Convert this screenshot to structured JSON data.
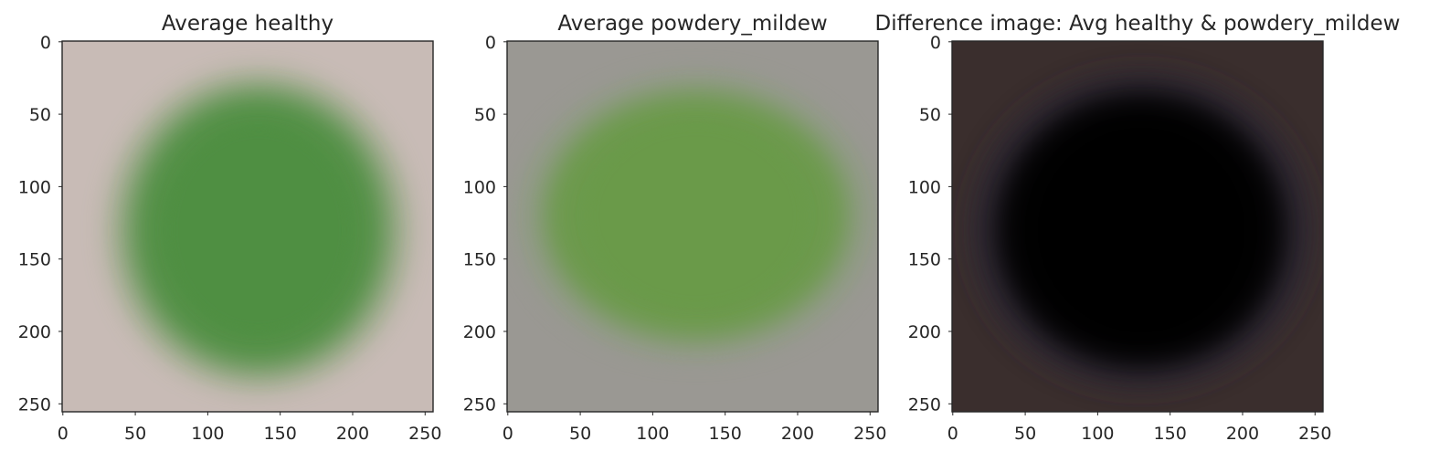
{
  "chart_data": [
    {
      "type": "heatmap",
      "title": "Average healthy",
      "xlabel": "",
      "ylabel": "",
      "xticks": [
        0,
        50,
        100,
        150,
        200,
        250
      ],
      "yticks": [
        0,
        50,
        100,
        150,
        200,
        250
      ],
      "xlim": [
        -0.5,
        255.5
      ],
      "ylim": [
        255.5,
        -0.5
      ],
      "grid": false,
      "image": {
        "background_color": "#c8bbb6",
        "leaf_color": "#4f8f43",
        "halo_color": "#8fa57e",
        "leaf_center": [
          135,
          130
        ],
        "leaf_radius": [
          88,
          95
        ],
        "midrib": true
      }
    },
    {
      "type": "heatmap",
      "title": "Average powdery_mildew",
      "xlabel": "",
      "ylabel": "",
      "xticks": [
        0,
        50,
        100,
        150,
        200,
        250
      ],
      "yticks": [
        0,
        50,
        100,
        150,
        200,
        250
      ],
      "xlim": [
        -0.5,
        255.5
      ],
      "ylim": [
        255.5,
        -0.5
      ],
      "grid": false,
      "image": {
        "background_color": "#9a9893",
        "leaf_color": "#6a9a4a",
        "halo_color": "#8e9c82",
        "leaf_center": [
          130,
          120
        ],
        "leaf_radius": [
          105,
          85
        ],
        "midrib": false
      }
    },
    {
      "type": "heatmap",
      "title": "Difference image: Avg healthy & powdery_mildew",
      "xlabel": "",
      "ylabel": "",
      "xticks": [
        0,
        50,
        100,
        150,
        200,
        250
      ],
      "yticks": [
        0,
        50,
        100,
        150,
        200,
        250
      ],
      "xlim": [
        -0.5,
        255.5
      ],
      "ylim": [
        255.5,
        -0.5
      ],
      "grid": false,
      "image": {
        "background_color": "#3a2e2d",
        "leaf_color": "#050405",
        "halo_color": "#2c2535",
        "leaf_center": [
          130,
          130
        ],
        "leaf_radius": [
          100,
          95
        ],
        "midrib": false
      }
    }
  ]
}
